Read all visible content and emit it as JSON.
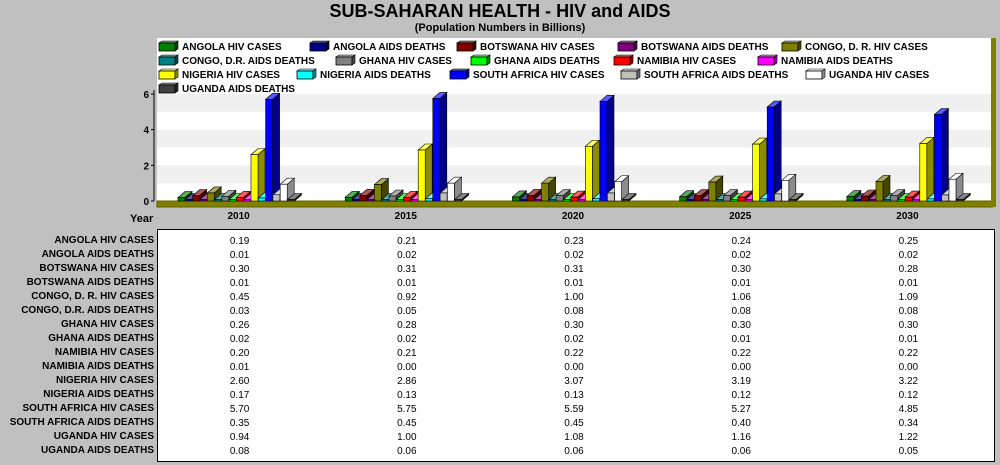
{
  "chart_data": {
    "type": "bar",
    "title": "SUB-SAHARAN HEALTH - HIV and AIDS",
    "subtitle": "(Population Numbers in Billions)",
    "xlabel": "Year",
    "ylabel": "",
    "ylim": [
      0,
      6
    ],
    "yticks": [
      0,
      2,
      4,
      6
    ],
    "categories": [
      "2010",
      "2015",
      "2020",
      "2025",
      "2030"
    ],
    "legend_position": "top",
    "series": [
      {
        "name": "ANGOLA HIV CASES",
        "color": "#008000",
        "values": [
          0.19,
          0.21,
          0.23,
          0.24,
          0.25
        ]
      },
      {
        "name": "ANGOLA AIDS DEATHS",
        "color": "#000080",
        "values": [
          0.01,
          0.02,
          0.02,
          0.02,
          0.02
        ]
      },
      {
        "name": "BOTSWANA HIV CASES",
        "color": "#800000",
        "values": [
          0.3,
          0.31,
          0.31,
          0.3,
          0.28
        ]
      },
      {
        "name": "BOTSWANA AIDS DEATHS",
        "color": "#800080",
        "values": [
          0.01,
          0.01,
          0.01,
          0.01,
          0.01
        ]
      },
      {
        "name": "CONGO, D. R. HIV CASES",
        "color": "#808000",
        "values": [
          0.45,
          0.92,
          1.0,
          1.06,
          1.09
        ]
      },
      {
        "name": "CONGO, D.R.  AIDS DEATHS",
        "color": "#008080",
        "values": [
          0.03,
          0.05,
          0.08,
          0.08,
          0.08
        ]
      },
      {
        "name": "GHANA HIV CASES",
        "color": "#808080",
        "values": [
          0.26,
          0.28,
          0.3,
          0.3,
          0.3
        ]
      },
      {
        "name": "GHANA AIDS DEATHS",
        "color": "#00ff00",
        "values": [
          0.02,
          0.02,
          0.02,
          0.01,
          0.01
        ]
      },
      {
        "name": "NAMIBIA HIV CASES",
        "color": "#ff0000",
        "values": [
          0.2,
          0.21,
          0.22,
          0.22,
          0.22
        ]
      },
      {
        "name": "NAMIBIA AIDS DEATHS",
        "color": "#ff00ff",
        "values": [
          0.01,
          0.0,
          0.0,
          0.0,
          0.0
        ]
      },
      {
        "name": "NIGERIA HIV CASES",
        "color": "#ffff00",
        "values": [
          2.6,
          2.86,
          3.07,
          3.19,
          3.22
        ]
      },
      {
        "name": "NIGERIA AIDS DEATHS",
        "color": "#00ffff",
        "values": [
          0.17,
          0.13,
          0.13,
          0.12,
          0.12
        ]
      },
      {
        "name": "SOUTH AFRICA HIV CASES",
        "color": "#0000ff",
        "values": [
          5.7,
          5.75,
          5.59,
          5.27,
          4.85
        ]
      },
      {
        "name": "SOUTH AFRICA AIDS DEATHS",
        "color": "#c0c0c0",
        "values": [
          0.35,
          0.45,
          0.45,
          0.4,
          0.34
        ]
      },
      {
        "name": "UGANDA HIV CASES",
        "color": "#ffffff",
        "values": [
          0.94,
          1.0,
          1.08,
          1.16,
          1.22
        ]
      },
      {
        "name": "UGANDA AIDS DEATHS",
        "color": "#404040",
        "values": [
          0.08,
          0.06,
          0.06,
          0.06,
          0.05
        ]
      }
    ],
    "table_values": [
      [
        "0.19",
        "0.21",
        "0.23",
        "0.24",
        "0.25"
      ],
      [
        "0.01",
        "0.02",
        "0.02",
        "0.02",
        "0.02"
      ],
      [
        "0.30",
        "0.31",
        "0.31",
        "0.30",
        "0.28"
      ],
      [
        "0.01",
        "0.01",
        "0.01",
        "0.01",
        "0.01"
      ],
      [
        "0.45",
        "0.92",
        "1.00",
        "1.06",
        "1.09"
      ],
      [
        "0.03",
        "0.05",
        "0.08",
        "0.08",
        "0.08"
      ],
      [
        "0.26",
        "0.28",
        "0.30",
        "0.30",
        "0.30"
      ],
      [
        "0.02",
        "0.02",
        "0.02",
        "0.01",
        "0.01"
      ],
      [
        "0.20",
        "0.21",
        "0.22",
        "0.22",
        "0.22"
      ],
      [
        "0.01",
        "0.00",
        "0.00",
        "0.00",
        "0.00"
      ],
      [
        "2.60",
        "2.86",
        "3.07",
        "3.19",
        "3.22"
      ],
      [
        "0.17",
        "0.13",
        "0.13",
        "0.12",
        "0.12"
      ],
      [
        "5.70",
        "5.75",
        "5.59",
        "5.27",
        "4.85"
      ],
      [
        "0.35",
        "0.45",
        "0.45",
        "0.40",
        "0.34"
      ],
      [
        "0.94",
        "1.00",
        "1.08",
        "1.16",
        "1.22"
      ],
      [
        "0.08",
        "0.06",
        "0.06",
        "0.06",
        "0.05"
      ]
    ],
    "colors": {
      "background": "#c0c0c0",
      "plot_band_light": "#f0f0f0",
      "plot_band_white": "#ffffff",
      "floor": "#808000",
      "floor_edge": "#606000"
    }
  }
}
